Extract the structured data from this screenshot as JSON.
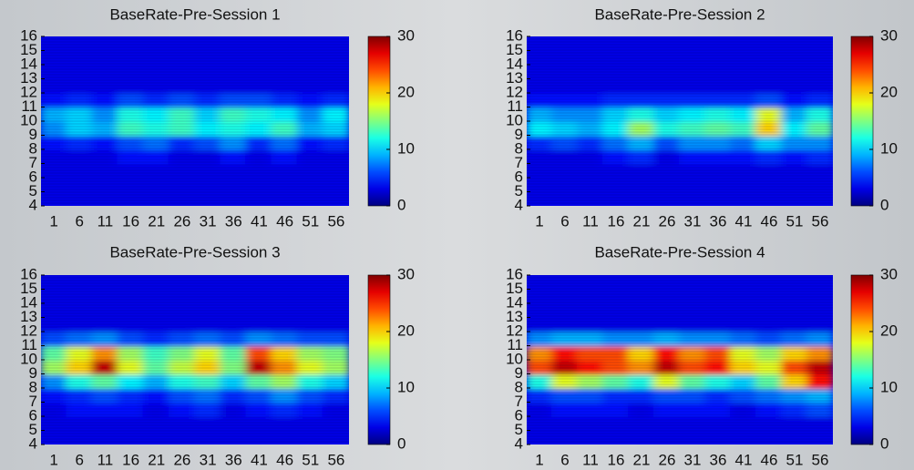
{
  "chart_data": [
    {
      "type": "heatmap",
      "title": "BaseRate-Pre-Session 1",
      "categories": [
        "1",
        "6",
        "11",
        "16",
        "21",
        "26",
        "31",
        "36",
        "41",
        "46",
        "51",
        "56"
      ],
      "ylim": [
        4,
        16
      ],
      "yticks": [
        4,
        5,
        6,
        7,
        8,
        9,
        10,
        11,
        12,
        13,
        14,
        15,
        16
      ],
      "zlim": [
        0,
        30
      ],
      "zticks": [
        0,
        10,
        20,
        30
      ],
      "colormap": "jet",
      "z": [
        [
          3,
          3,
          3,
          3,
          3,
          3,
          3,
          3,
          3,
          3,
          3,
          3
        ],
        [
          3,
          3,
          3,
          3,
          3,
          3,
          3,
          3,
          3,
          3,
          3,
          3
        ],
        [
          3,
          3,
          3,
          3,
          3,
          3,
          3,
          3,
          3,
          3,
          3,
          3
        ],
        [
          3,
          3,
          3,
          4,
          4,
          3,
          3,
          4,
          3,
          4,
          3,
          3
        ],
        [
          4,
          5,
          4,
          6,
          7,
          5,
          6,
          8,
          5,
          7,
          4,
          5
        ],
        [
          8,
          10,
          9,
          13,
          12,
          13,
          11,
          12,
          11,
          13,
          9,
          10
        ],
        [
          9,
          10,
          8,
          12,
          11,
          13,
          10,
          13,
          12,
          11,
          8,
          11
        ],
        [
          4,
          5,
          4,
          6,
          5,
          6,
          5,
          6,
          6,
          5,
          4,
          5
        ],
        [
          3,
          3,
          3,
          3,
          3,
          3,
          3,
          3,
          3,
          3,
          3,
          3
        ],
        [
          3,
          3,
          3,
          3,
          3,
          3,
          3,
          3,
          3,
          3,
          3,
          3
        ],
        [
          3,
          3,
          3,
          3,
          3,
          3,
          3,
          3,
          3,
          3,
          3,
          3
        ],
        [
          3,
          3,
          3,
          3,
          3,
          3,
          3,
          3,
          3,
          3,
          3,
          3
        ]
      ]
    },
    {
      "type": "heatmap",
      "title": "BaseRate-Pre-Session 2",
      "categories": [
        "1",
        "6",
        "11",
        "16",
        "21",
        "26",
        "31",
        "36",
        "41",
        "46",
        "51",
        "56"
      ],
      "ylim": [
        4,
        16
      ],
      "yticks": [
        4,
        5,
        6,
        7,
        8,
        9,
        10,
        11,
        12,
        13,
        14,
        15,
        16
      ],
      "zlim": [
        0,
        30
      ],
      "zticks": [
        0,
        10,
        20,
        30
      ],
      "colormap": "jet",
      "z": [
        [
          3,
          3,
          3,
          3,
          3,
          3,
          3,
          3,
          3,
          3,
          3,
          3
        ],
        [
          3,
          3,
          3,
          3,
          3,
          3,
          3,
          3,
          3,
          3,
          3,
          3
        ],
        [
          3,
          3,
          3,
          3,
          3,
          3,
          3,
          3,
          3,
          3,
          3,
          3
        ],
        [
          3,
          3,
          3,
          4,
          5,
          3,
          4,
          4,
          4,
          5,
          4,
          5
        ],
        [
          5,
          6,
          5,
          7,
          9,
          6,
          8,
          8,
          7,
          10,
          8,
          8
        ],
        [
          11,
          10,
          9,
          11,
          16,
          12,
          13,
          14,
          13,
          20,
          11,
          14
        ],
        [
          9,
          8,
          8,
          10,
          12,
          10,
          11,
          12,
          11,
          18,
          9,
          12
        ],
        [
          4,
          4,
          4,
          5,
          5,
          5,
          5,
          5,
          5,
          6,
          4,
          5
        ],
        [
          3,
          3,
          3,
          3,
          3,
          3,
          3,
          3,
          3,
          3,
          3,
          3
        ],
        [
          3,
          3,
          3,
          3,
          3,
          3,
          3,
          3,
          3,
          3,
          3,
          3
        ],
        [
          3,
          3,
          3,
          3,
          3,
          3,
          3,
          3,
          3,
          3,
          3,
          3
        ],
        [
          3,
          3,
          3,
          3,
          3,
          3,
          3,
          3,
          3,
          3,
          3,
          3
        ]
      ]
    },
    {
      "type": "heatmap",
      "title": "BaseRate-Pre-Session 3",
      "categories": [
        "1",
        "6",
        "11",
        "16",
        "21",
        "26",
        "31",
        "36",
        "41",
        "46",
        "51",
        "56"
      ],
      "ylim": [
        4,
        16
      ],
      "yticks": [
        4,
        5,
        6,
        7,
        8,
        9,
        10,
        11,
        12,
        13,
        14,
        15,
        16
      ],
      "zlim": [
        0,
        30
      ],
      "zticks": [
        0,
        10,
        20,
        30
      ],
      "colormap": "jet",
      "z": [
        [
          3,
          3,
          3,
          3,
          3,
          3,
          3,
          3,
          3,
          3,
          3,
          3
        ],
        [
          3,
          3,
          3,
          3,
          3,
          3,
          3,
          3,
          3,
          3,
          3,
          3
        ],
        [
          3,
          4,
          4,
          4,
          3,
          4,
          5,
          3,
          4,
          5,
          4,
          3
        ],
        [
          4,
          5,
          6,
          5,
          4,
          6,
          7,
          5,
          6,
          8,
          6,
          5
        ],
        [
          8,
          12,
          14,
          11,
          9,
          12,
          13,
          10,
          14,
          16,
          12,
          10
        ],
        [
          16,
          20,
          28,
          18,
          14,
          17,
          20,
          15,
          28,
          22,
          18,
          16
        ],
        [
          14,
          18,
          22,
          16,
          13,
          15,
          18,
          14,
          24,
          20,
          16,
          15
        ],
        [
          6,
          7,
          8,
          6,
          5,
          6,
          7,
          6,
          8,
          7,
          6,
          6
        ],
        [
          3,
          3,
          3,
          3,
          3,
          3,
          3,
          3,
          3,
          3,
          3,
          3
        ],
        [
          3,
          3,
          3,
          3,
          3,
          3,
          3,
          3,
          3,
          3,
          3,
          3
        ],
        [
          3,
          3,
          3,
          3,
          3,
          3,
          3,
          3,
          3,
          3,
          3,
          3
        ],
        [
          3,
          3,
          3,
          3,
          3,
          3,
          3,
          3,
          3,
          3,
          3,
          3
        ]
      ]
    },
    {
      "type": "heatmap",
      "title": "BaseRate-Pre-Session 4",
      "categories": [
        "1",
        "6",
        "11",
        "16",
        "21",
        "26",
        "31",
        "36",
        "41",
        "46",
        "51",
        "56"
      ],
      "ylim": [
        4,
        16
      ],
      "yticks": [
        4,
        5,
        6,
        7,
        8,
        9,
        10,
        11,
        12,
        13,
        14,
        15,
        16
      ],
      "zlim": [
        0,
        30
      ],
      "zticks": [
        0,
        10,
        20,
        30
      ],
      "colormap": "jet",
      "z": [
        [
          3,
          3,
          3,
          3,
          3,
          3,
          3,
          3,
          3,
          3,
          3,
          3
        ],
        [
          3,
          3,
          3,
          3,
          3,
          3,
          3,
          3,
          3,
          3,
          3,
          3
        ],
        [
          3,
          4,
          4,
          4,
          3,
          4,
          4,
          4,
          3,
          4,
          5,
          6
        ],
        [
          5,
          6,
          6,
          5,
          5,
          6,
          6,
          5,
          6,
          7,
          8,
          9
        ],
        [
          12,
          18,
          16,
          14,
          12,
          18,
          14,
          12,
          10,
          14,
          20,
          26
        ],
        [
          24,
          28,
          26,
          24,
          22,
          28,
          24,
          26,
          20,
          18,
          24,
          28
        ],
        [
          22,
          26,
          24,
          24,
          20,
          26,
          22,
          24,
          18,
          16,
          20,
          22
        ],
        [
          8,
          9,
          9,
          8,
          8,
          9,
          8,
          8,
          7,
          6,
          7,
          8
        ],
        [
          3,
          3,
          3,
          3,
          3,
          3,
          3,
          3,
          3,
          3,
          3,
          3
        ],
        [
          3,
          3,
          3,
          3,
          3,
          3,
          3,
          3,
          3,
          3,
          3,
          3
        ],
        [
          3,
          3,
          3,
          3,
          3,
          3,
          3,
          3,
          3,
          3,
          3,
          3
        ],
        [
          3,
          3,
          3,
          3,
          3,
          3,
          3,
          3,
          3,
          3,
          3,
          3
        ]
      ]
    }
  ]
}
